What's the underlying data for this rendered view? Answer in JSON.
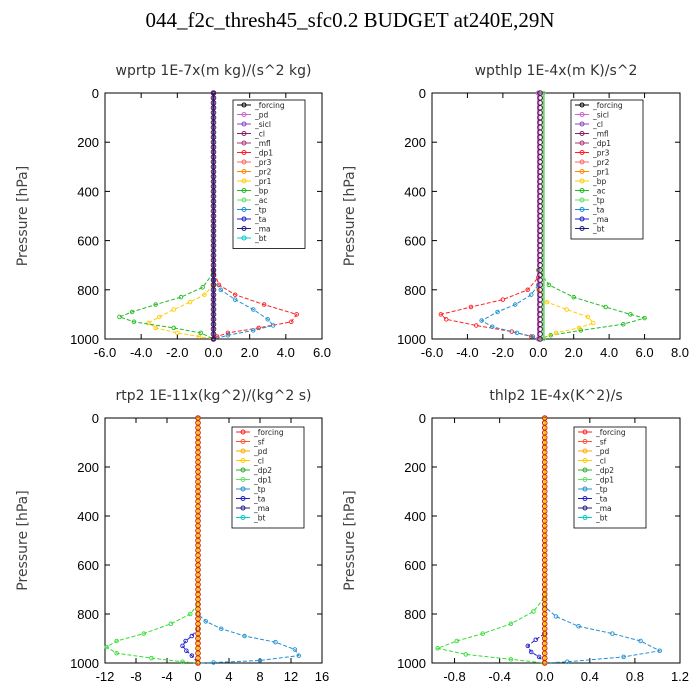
{
  "figure": {
    "title": "044_f2c_thresh45_sfc0.2  BUDGET at240E,29N"
  },
  "chart_data": [
    {
      "type": "line",
      "title": "wprtp  1E-7x(m kg)/(s^2 kg)",
      "ylabel": "Pressure [hPa]",
      "xlim": [
        -6,
        6
      ],
      "ylim": [
        1000,
        0
      ],
      "xticks": [
        "-6.0",
        "-4.0",
        "-2.0",
        "0.0",
        "2.0",
        "4.0",
        "6.0"
      ],
      "yticks": [
        "0",
        "200",
        "400",
        "600",
        "800",
        "1000"
      ],
      "legend": [
        "_forcing",
        "_pd",
        "_sicl",
        "_cl",
        "_mfl",
        "_dp1",
        "_pr3",
        "_pr2",
        "_pr1",
        "_bp",
        "_ac",
        "_tp",
        "_ta",
        "_ma",
        "_bt"
      ],
      "series": [
        {
          "name": "_dp1",
          "color": "#ff2020",
          "points": [
            [
              0,
              0
            ],
            [
              0,
              720
            ],
            [
              0.3,
              780
            ],
            [
              1.2,
              820
            ],
            [
              2.8,
              860
            ],
            [
              4.6,
              900
            ],
            [
              4.3,
              930
            ],
            [
              2.5,
              955
            ],
            [
              0.8,
              975
            ],
            [
              0.2,
              990
            ],
            [
              0,
              1000
            ]
          ]
        },
        {
          "name": "_pr1",
          "color": "#ffcc00",
          "points": [
            [
              0,
              0
            ],
            [
              0,
              780
            ],
            [
              -0.5,
              820
            ],
            [
              -1.3,
              850
            ],
            [
              -2.2,
              880
            ],
            [
              -3.0,
              910
            ],
            [
              -3.6,
              935
            ],
            [
              -3.2,
              955
            ],
            [
              -2.0,
              975
            ],
            [
              -0.8,
              990
            ],
            [
              0,
              1000
            ]
          ]
        },
        {
          "name": "_bp",
          "color": "#22bb22",
          "points": [
            [
              0,
              0
            ],
            [
              0,
              730
            ],
            [
              -0.6,
              790
            ],
            [
              -1.8,
              830
            ],
            [
              -3.2,
              860
            ],
            [
              -4.5,
              890
            ],
            [
              -5.2,
              910
            ],
            [
              -4.4,
              930
            ],
            [
              -2.2,
              955
            ],
            [
              -0.7,
              975
            ],
            [
              0,
              1000
            ]
          ]
        },
        {
          "name": "_tp",
          "color": "#2090d0",
          "points": [
            [
              0,
              0
            ],
            [
              0,
              760
            ],
            [
              0.4,
              800
            ],
            [
              1.2,
              840
            ],
            [
              2.2,
              880
            ],
            [
              3.0,
              920
            ],
            [
              3.3,
              945
            ],
            [
              2.2,
              965
            ],
            [
              0.8,
              985
            ],
            [
              0,
              1000
            ]
          ]
        },
        {
          "name": "_forcing",
          "color": "#000000",
          "points": [
            [
              0,
              0
            ],
            [
              0,
              1000
            ]
          ]
        },
        {
          "name": "_ma",
          "color": "#202080",
          "points": [
            [
              0,
              0
            ],
            [
              0,
              1000
            ]
          ]
        }
      ]
    },
    {
      "type": "line",
      "title": "wpthlp  1E-4x(m K)/s^2",
      "ylabel": "Pressure [hPa]",
      "xlim": [
        -6,
        8
      ],
      "ylim": [
        1000,
        0
      ],
      "xticks": [
        "-6.0",
        "-4.0",
        "-2.0",
        "0.0",
        "2.0",
        "4.0",
        "6.0",
        "8.0"
      ],
      "yticks": [
        "0",
        "200",
        "400",
        "600",
        "800",
        "1000"
      ],
      "legend": [
        "_forcing",
        "_sicl",
        "_cl",
        "_mfl",
        "_dp1",
        "_pr3",
        "_pr2",
        "_pr1",
        "_bp",
        "_ac",
        "_tp",
        "_ta",
        "_ma",
        "_bt"
      ],
      "series": [
        {
          "name": "_dp1",
          "color": "#ff2020",
          "points": [
            [
              0,
              0
            ],
            [
              0,
              750
            ],
            [
              -0.6,
              800
            ],
            [
              -2.0,
              840
            ],
            [
              -3.8,
              870
            ],
            [
              -5.5,
              900
            ],
            [
              -5.2,
              920
            ],
            [
              -3.5,
              945
            ],
            [
              -1.5,
              970
            ],
            [
              -0.4,
              990
            ],
            [
              0,
              1000
            ]
          ]
        },
        {
          "name": "_bp",
          "color": "#22bb22",
          "points": [
            [
              0,
              0
            ],
            [
              0,
              720
            ],
            [
              0.6,
              780
            ],
            [
              2.0,
              830
            ],
            [
              3.8,
              870
            ],
            [
              5.2,
              900
            ],
            [
              6.0,
              915
            ],
            [
              4.8,
              940
            ],
            [
              2.4,
              965
            ],
            [
              0.7,
              985
            ],
            [
              0,
              1000
            ]
          ]
        },
        {
          "name": "_pr1",
          "color": "#ffcc00",
          "points": [
            [
              0,
              0
            ],
            [
              0,
              800
            ],
            [
              0.5,
              850
            ],
            [
              1.6,
              880
            ],
            [
              2.8,
              910
            ],
            [
              3.1,
              935
            ],
            [
              2.3,
              955
            ],
            [
              1.0,
              975
            ],
            [
              0,
              1000
            ]
          ]
        },
        {
          "name": "_tp",
          "color": "#2090d0",
          "points": [
            [
              0,
              0
            ],
            [
              0,
              780
            ],
            [
              -0.4,
              820
            ],
            [
              -1.3,
              860
            ],
            [
              -2.3,
              890
            ],
            [
              -3.2,
              925
            ],
            [
              -2.6,
              950
            ],
            [
              -1.2,
              975
            ],
            [
              -0.3,
              990
            ],
            [
              0,
              1000
            ]
          ]
        },
        {
          "name": "_forcing",
          "color": "#cc66cc",
          "points": [
            [
              0,
              0
            ],
            [
              0,
              1000
            ]
          ]
        },
        {
          "name": "_ac",
          "color": "#66dd66",
          "points": [
            [
              0.3,
              0
            ],
            [
              0.3,
              1000
            ]
          ]
        }
      ]
    },
    {
      "type": "line",
      "title": "rtp2  1E-11x(kg^2)/(kg^2 s)",
      "ylabel": "Pressure [hPa]",
      "xlim": [
        -12,
        16
      ],
      "ylim": [
        1000,
        0
      ],
      "xticks": [
        "-12",
        "-8",
        "-4",
        "0",
        "4",
        "8",
        "12",
        "16"
      ],
      "yticks": [
        "0",
        "200",
        "400",
        "600",
        "800",
        "1000"
      ],
      "legend": [
        "_forcing",
        "_sf",
        "_pd",
        "_cl",
        "_dp2",
        "_dp1",
        "_tp",
        "_ta",
        "_ma",
        "_bt"
      ],
      "series": [
        {
          "name": "_dp1",
          "color": "#33dd33",
          "points": [
            [
              0,
              0
            ],
            [
              0,
              760
            ],
            [
              -1.0,
              800
            ],
            [
              -3.5,
              840
            ],
            [
              -7.0,
              880
            ],
            [
              -10.5,
              910
            ],
            [
              -11.8,
              935
            ],
            [
              -10.5,
              960
            ],
            [
              -6.0,
              980
            ],
            [
              -2.0,
              995
            ],
            [
              0,
              1000
            ]
          ]
        },
        {
          "name": "_tp",
          "color": "#2090d0",
          "points": [
            [
              0,
              0
            ],
            [
              0,
              800
            ],
            [
              1.0,
              830
            ],
            [
              3.0,
              860
            ],
            [
              6.0,
              890
            ],
            [
              10.0,
              915
            ],
            [
              12.5,
              945
            ],
            [
              13.0,
              970
            ],
            [
              8.0,
              990
            ],
            [
              2.0,
              998
            ],
            [
              0,
              1000
            ]
          ]
        },
        {
          "name": "_ta",
          "color": "#2020cc",
          "points": [
            [
              0,
              0
            ],
            [
              0,
              860
            ],
            [
              -0.8,
              890
            ],
            [
              -1.6,
              910
            ],
            [
              -2.0,
              930
            ],
            [
              -1.5,
              950
            ],
            [
              -0.8,
              970
            ],
            [
              0,
              1000
            ]
          ]
        },
        {
          "name": "_forcing",
          "color": "#ff2020",
          "points": [
            [
              0,
              0
            ],
            [
              0,
              1000
            ]
          ]
        },
        {
          "name": "_pd",
          "color": "#ffcc00",
          "points": [
            [
              0,
              0
            ],
            [
              0,
              1000
            ]
          ]
        }
      ]
    },
    {
      "type": "line",
      "title": "thlp2  1E-4x(K^2)/s",
      "ylabel": "Pressure [hPa]",
      "xlim": [
        -1.0,
        1.2
      ],
      "ylim": [
        1000,
        0
      ],
      "xticks": [
        "-0.8",
        "-0.4",
        "0.0",
        "0.4",
        "0.8",
        "1.2"
      ],
      "yticks": [
        "0",
        "200",
        "400",
        "600",
        "800",
        "1000"
      ],
      "legend": [
        "_forcing",
        "_sf",
        "_pd",
        "_cl",
        "_dp2",
        "_dp1",
        "_tp",
        "_ta",
        "_ma",
        "_bt"
      ],
      "series": [
        {
          "name": "_dp1",
          "color": "#33dd33",
          "points": [
            [
              0,
              0
            ],
            [
              0,
              730
            ],
            [
              -0.1,
              790
            ],
            [
              -0.3,
              840
            ],
            [
              -0.55,
              880
            ],
            [
              -0.78,
              910
            ],
            [
              -0.95,
              940
            ],
            [
              -0.7,
              965
            ],
            [
              -0.3,
              985
            ],
            [
              0,
              1000
            ]
          ]
        },
        {
          "name": "_tp",
          "color": "#2090d0",
          "points": [
            [
              0,
              0
            ],
            [
              0,
              770
            ],
            [
              0.1,
              810
            ],
            [
              0.3,
              850
            ],
            [
              0.6,
              880
            ],
            [
              0.85,
              910
            ],
            [
              1.02,
              950
            ],
            [
              0.7,
              975
            ],
            [
              0.2,
              995
            ],
            [
              0,
              1000
            ]
          ]
        },
        {
          "name": "_ta",
          "color": "#2020cc",
          "points": [
            [
              0,
              0
            ],
            [
              0,
              880
            ],
            [
              -0.08,
              905
            ],
            [
              -0.15,
              930
            ],
            [
              -0.12,
              955
            ],
            [
              -0.05,
              975
            ],
            [
              0,
              1000
            ]
          ]
        },
        {
          "name": "_forcing",
          "color": "#ff2020",
          "points": [
            [
              0,
              0
            ],
            [
              0,
              1000
            ]
          ]
        },
        {
          "name": "_pd",
          "color": "#ffcc00",
          "points": [
            [
              0,
              0
            ],
            [
              0,
              1000
            ]
          ]
        }
      ]
    }
  ]
}
